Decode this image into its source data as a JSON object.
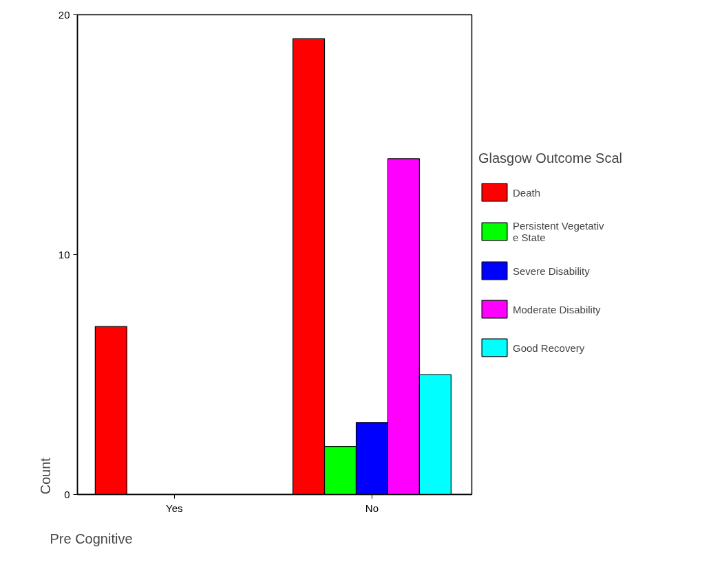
{
  "chart_data": {
    "type": "bar",
    "xlabel": "Pre Cognitive",
    "ylabel": "Count",
    "legend_title": "Glasgow Outcome Scal",
    "categories": [
      "Yes",
      "No"
    ],
    "series": [
      {
        "name": "Death",
        "color": "#ff0000",
        "values": [
          7,
          19
        ]
      },
      {
        "name": "Persistent Vegetative State",
        "color": "#00ff00",
        "values": [
          null,
          2
        ]
      },
      {
        "name": "Severe Disability",
        "color": "#0000ff",
        "values": [
          null,
          3
        ]
      },
      {
        "name": "Moderate Disability",
        "color": "#ff00ff",
        "values": [
          null,
          14
        ]
      },
      {
        "name": "Good Recovery",
        "color": "#00ffff",
        "values": [
          null,
          5
        ]
      }
    ],
    "ylim": [
      0,
      20
    ],
    "yticks": [
      0,
      10,
      20
    ],
    "grid": false,
    "legend": "right"
  }
}
